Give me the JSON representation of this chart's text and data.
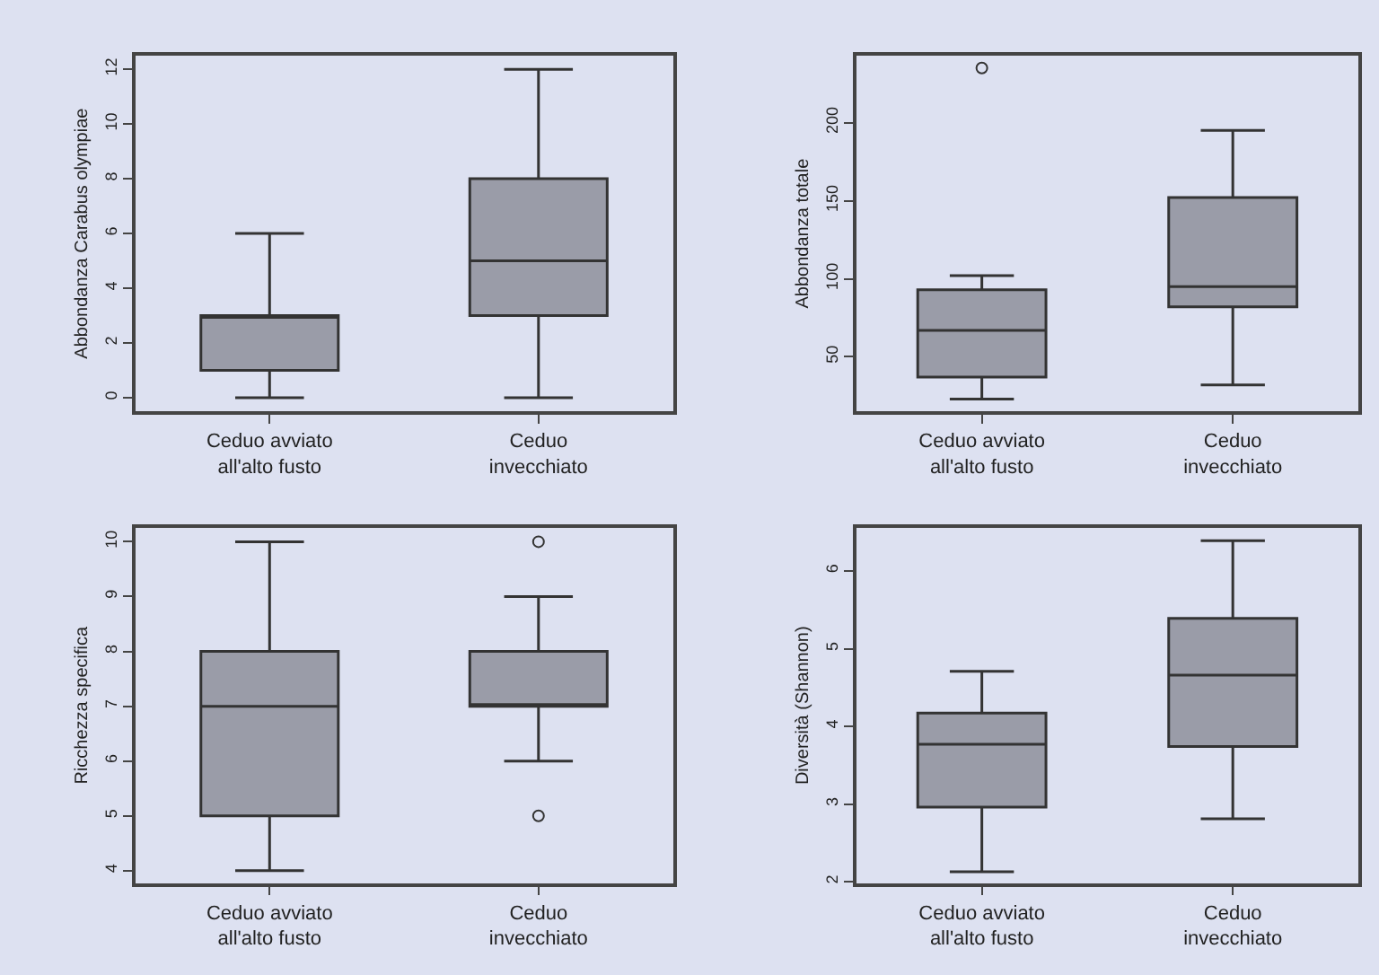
{
  "chart_data": [
    {
      "type": "box",
      "ylabel": "Abbondanza Carabus olympiae",
      "categories": [
        "Ceduo avviato\nall'alto fusto",
        "Ceduo\ninvecchiato"
      ],
      "color": "#9a9ca8",
      "ylim": [
        -0.5,
        12.5
      ],
      "yticks": [
        0,
        2,
        4,
        6,
        8,
        10,
        12
      ],
      "grid": false,
      "boxes": [
        {
          "low": 0,
          "q1": 1,
          "median": 3,
          "q3": 3,
          "high": 6
        },
        {
          "low": 0,
          "q1": 3,
          "median": 5,
          "q3": 8,
          "high": 12
        }
      ]
    },
    {
      "type": "box",
      "ylabel": "Abbondanza totale",
      "categories": [
        "Ceduo avviato\nall'alto fusto",
        "Ceduo\ninvecchiato"
      ],
      "color": "#9a9ca8",
      "ylim": [
        15,
        243
      ],
      "yticks": [
        50,
        100,
        150,
        200
      ],
      "grid": false,
      "boxes": [
        {
          "low": 23,
          "q1": 37,
          "median": 67,
          "q3": 93,
          "high": 102,
          "outliers": [
            235
          ]
        },
        {
          "low": 32,
          "q1": 82,
          "median": 95,
          "q3": 152,
          "high": 195
        }
      ]
    },
    {
      "type": "box",
      "ylabel": "Ricchezza specifica",
      "categories": [
        "Ceduo avviato\nall'alto fusto",
        "Ceduo\ninvecchiato"
      ],
      "color": "#9a9ca8",
      "ylim": [
        3.77,
        10.26
      ],
      "yticks": [
        4,
        5,
        6,
        7,
        8,
        9,
        10
      ],
      "grid": false,
      "boxes": [
        {
          "low": 4,
          "q1": 5,
          "median": 7,
          "q3": 8,
          "high": 10
        },
        {
          "low": 6,
          "q1": 7,
          "median": 7,
          "q3": 8,
          "high": 9,
          "outliers": [
            10,
            5
          ]
        }
      ]
    },
    {
      "type": "box",
      "ylabel": "Diversità (Shannon)",
      "categories": [
        "Ceduo avviato\nall'alto fusto",
        "Ceduo\ninvecchiato"
      ],
      "color": "#9a9ca8",
      "ylim": [
        1.98,
        6.56
      ],
      "yticks": [
        2,
        3,
        4,
        5,
        6
      ],
      "grid": false,
      "boxes": [
        {
          "low": 2.13,
          "q1": 2.96,
          "median": 3.77,
          "q3": 4.17,
          "high": 4.71
        },
        {
          "low": 2.81,
          "q1": 3.74,
          "median": 4.66,
          "q3": 5.39,
          "high": 6.39
        }
      ]
    }
  ]
}
